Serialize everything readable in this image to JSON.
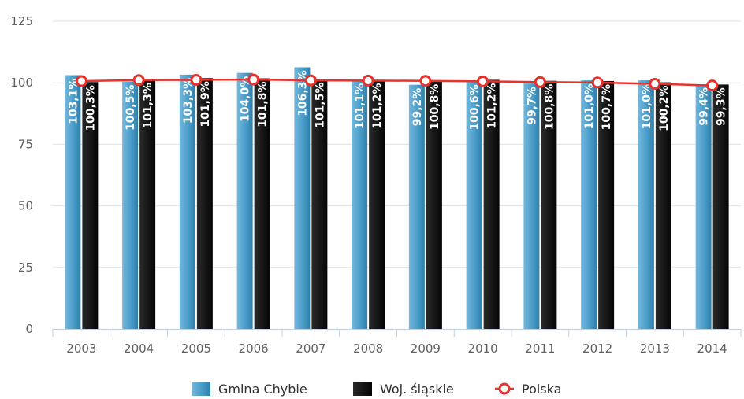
{
  "chart_data": {
    "type": "bar",
    "title": "",
    "xlabel": "",
    "ylabel": "",
    "ylim": [
      0,
      125
    ],
    "yticks": [
      0,
      25,
      50,
      75,
      100,
      125
    ],
    "grid": true,
    "legend_position": "bottom-center",
    "categories": [
      "2003",
      "2004",
      "2005",
      "2006",
      "2007",
      "2008",
      "2009",
      "2010",
      "2011",
      "2012",
      "2013",
      "2014"
    ],
    "series": [
      {
        "name": "Gmina Chybie",
        "kind": "bar",
        "color": "#4a9dc9",
        "values": [
          103.1,
          100.5,
          103.3,
          104.0,
          106.3,
          101.1,
          99.2,
          100.6,
          99.7,
          101.0,
          101.0,
          99.4
        ],
        "labels": [
          "103,1%",
          "100,5%",
          "103,3%",
          "104,0%",
          "106,3%",
          "101,1%",
          "99,2%",
          "100,6%",
          "99,7%",
          "101,0%",
          "101,0%",
          "99,4%"
        ]
      },
      {
        "name": "Woj. śląskie",
        "kind": "bar",
        "color": "#111111",
        "values": [
          100.3,
          101.3,
          101.9,
          101.8,
          101.5,
          101.2,
          100.8,
          101.2,
          100.8,
          100.7,
          100.2,
          99.3
        ],
        "labels": [
          "100,3%",
          "101,3%",
          "101,9%",
          "101,8%",
          "101,5%",
          "101,2%",
          "100,8%",
          "101,2%",
          "100,8%",
          "100,7%",
          "100,2%",
          "99,3%"
        ]
      },
      {
        "name": "Polska",
        "kind": "line",
        "color": "#e8332d",
        "values": [
          100.7,
          101.1,
          101.2,
          101.3,
          101.0,
          100.9,
          100.8,
          100.6,
          100.3,
          100.1,
          99.6,
          98.9
        ]
      }
    ]
  }
}
